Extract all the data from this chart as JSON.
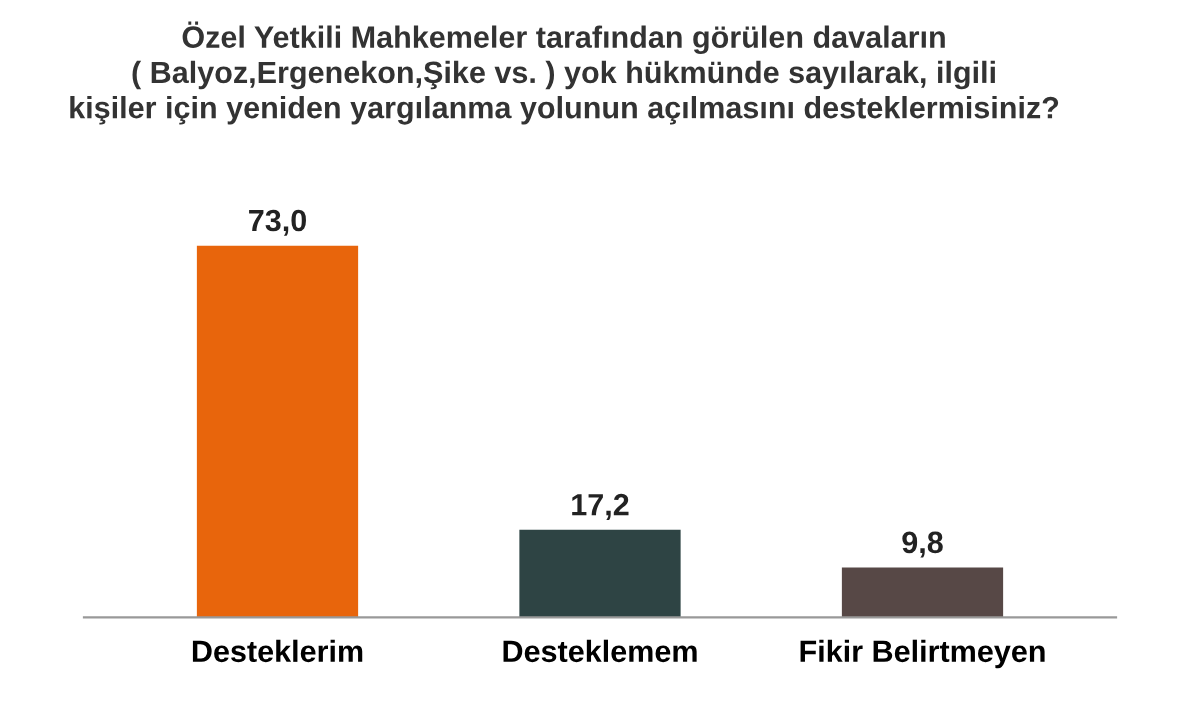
{
  "chart_data": {
    "type": "bar",
    "title": "Özel Yetkili Mahkemeler tarafından görülen davaların\n( Balyoz,Ergenekon,Şike vs. ) yok hükmünde sayılarak, ilgili\nkişiler için yeniden yargılanma yolunun açılmasını desteklermisiniz?",
    "categories": [
      "Desteklerim",
      "Desteklemem",
      "Fikir Belirtmeyen"
    ],
    "values": [
      73.0,
      17.2,
      9.8
    ],
    "colors": [
      "#e8650c",
      "#2e4444",
      "#574846"
    ],
    "value_labels": [
      "73,0",
      "17,2",
      "9,8"
    ],
    "grid": false,
    "legend": false
  }
}
